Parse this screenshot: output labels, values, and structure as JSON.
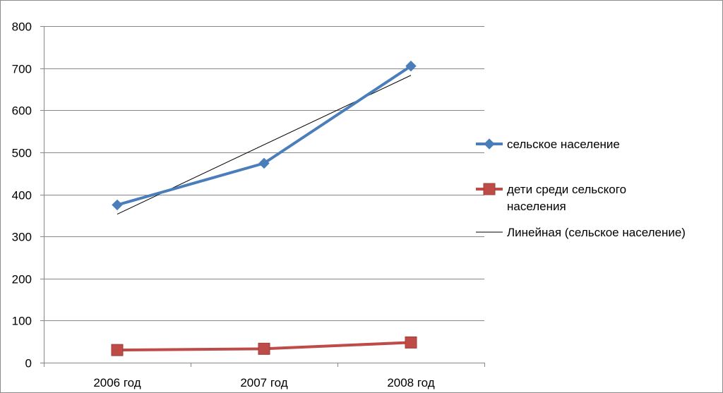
{
  "chart_data": {
    "type": "line",
    "title": "",
    "xlabel": "",
    "ylabel": "",
    "categories": [
      "2006 год",
      "2007 год",
      "2008 год"
    ],
    "ylim": [
      0,
      800
    ],
    "yticks": [
      0,
      100,
      200,
      300,
      400,
      500,
      600,
      700,
      800
    ],
    "grid": true,
    "legend_position": "right",
    "series": [
      {
        "name": "сельское население",
        "name_lines": [
          "сельское население"
        ],
        "values": [
          375,
          474,
          705
        ],
        "color": "#4a7ebb",
        "marker": "diamond"
      },
      {
        "name": "дети среди сельского населения",
        "name_lines": [
          "дети среди сельского",
          "населения"
        ],
        "values": [
          30,
          33,
          48
        ],
        "color": "#be4b48",
        "marker": "square"
      }
    ],
    "trendline": {
      "name": "Линейная (сельское население)",
      "name_lines": [
        "Линейная (сельское население)"
      ],
      "of_series": "сельское население",
      "type": "linear",
      "color": "#000000"
    }
  }
}
